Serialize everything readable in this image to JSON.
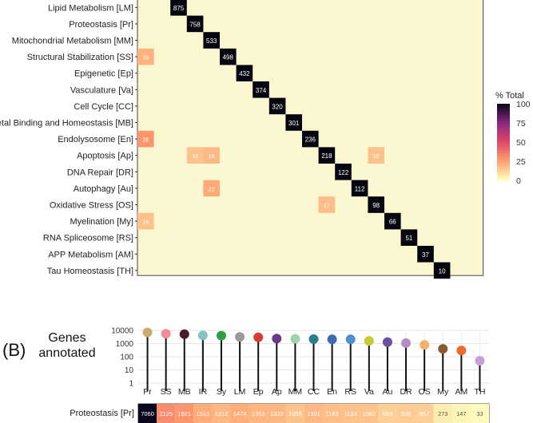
{
  "chart_data": [
    {
      "type": "heatmap",
      "rows": [
        "Lipid Metabolism [LM]",
        "Proteostasis [Pr]",
        "Mitochondrial Metabolism [MM]",
        "Structural Stabilization [SS]",
        "Epigenetic [Ep]",
        "Vasculature [Va]",
        "Cell Cycle [CC]",
        "Metal Binding and Homeostasis [MB]",
        "Endolysosome [En]",
        "Apoptosis [Ap]",
        "DNA Repair [DR]",
        "Autophagy [Au]",
        "Oxidative Stress [OS]",
        "Myelination [My]",
        "RNA Spliceosome [RS]",
        "APP Metabolism [AM]",
        "Tau Homeostasis [TH]"
      ],
      "diagonal_values": [
        875,
        758,
        533,
        498,
        432,
        374,
        320,
        301,
        236,
        218,
        122,
        112,
        98,
        66,
        51,
        37,
        10
      ],
      "first_diagonal_column": 2,
      "off_diagonal_highlights": [
        {
          "row": 1,
          "col": 3,
          "value": 27
        },
        {
          "row": 3,
          "col": 0,
          "value": 20
        },
        {
          "row": 8,
          "col": 0,
          "value": 28
        },
        {
          "row": 9,
          "col": 3,
          "value": 16
        },
        {
          "row": 9,
          "col": 4,
          "value": 18
        },
        {
          "row": 9,
          "col": 14,
          "value": 16
        },
        {
          "row": 11,
          "col": 4,
          "value": 22
        },
        {
          "row": 12,
          "col": 11,
          "value": 17
        },
        {
          "row": 13,
          "col": 0,
          "value": 16
        }
      ],
      "legend": {
        "title": "% Total",
        "ticks": [
          100,
          75,
          50,
          25,
          0
        ]
      }
    },
    {
      "type": "scatter",
      "panel_label": "(B)",
      "ylabel": "Genes annotated",
      "y_scale": "log",
      "y_ticks": [
        "10000",
        "1000",
        "100",
        "10",
        "1"
      ],
      "categories": [
        "Pr",
        "SS",
        "MB",
        "IR",
        "Sy",
        "LM",
        "Ep",
        "Ap",
        "MM",
        "CC",
        "En",
        "RS",
        "Va",
        "Au",
        "DR",
        "OS",
        "My",
        "AM",
        "TH"
      ],
      "values": [
        7060,
        5600,
        5200,
        4200,
        4000,
        3200,
        3000,
        2400,
        2300,
        2200,
        2100,
        2100,
        1600,
        1300,
        1100,
        800,
        400,
        300,
        50
      ],
      "colors": [
        "#c9ad6e",
        "#ef8e96",
        "#4a1a2c",
        "#7fc6c4",
        "#2e9f45",
        "#9a9a9a",
        "#d93a34",
        "#6a3a8a",
        "#9fd3ad",
        "#2a7f8a",
        "#3f6ab0",
        "#4f8fcf",
        "#c9c933",
        "#6a4fa0",
        "#b38fc6",
        "#f3b26a",
        "#8a5a2e",
        "#ef6b2a",
        "#c9a0d6"
      ]
    },
    {
      "type": "table",
      "row_label": "Proteostasis [Pr]",
      "values": [
        "7060",
        "2125",
        "1921",
        "1513",
        "1312",
        "1474",
        "1353",
        "1323",
        "1095",
        "1301",
        "1183",
        "1133",
        "1082",
        "883",
        "938",
        "857",
        "273",
        "147",
        "33"
      ]
    }
  ],
  "icons": {
    "matrix": "confusion-matrix",
    "dots": "lollipop-points"
  }
}
